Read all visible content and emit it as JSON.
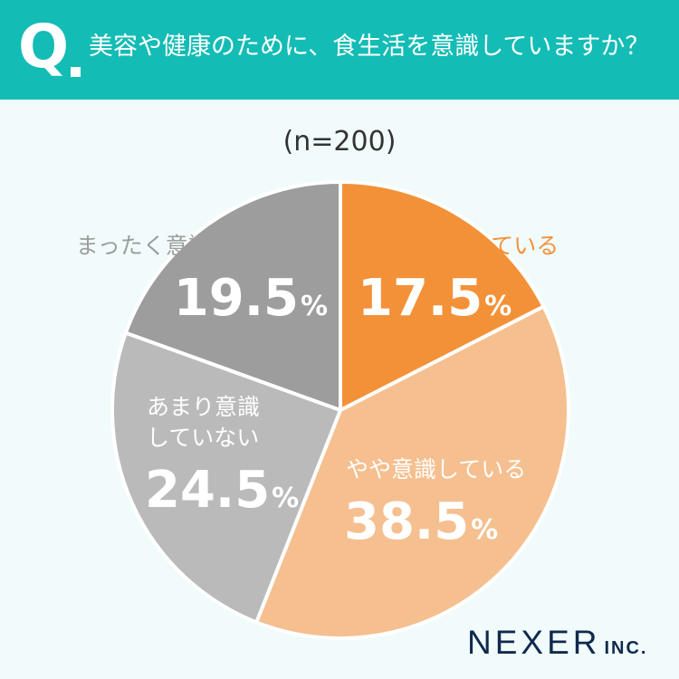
{
  "header": {
    "q_mark": "Q",
    "question": "美容や健康のために、食生活を意識していますか？",
    "bg_color": "#13bcb5"
  },
  "sample": "(n=200)",
  "chart_data": {
    "type": "pie",
    "start": "12 o'clock",
    "direction": "clockwise",
    "slices": [
      {
        "label": "とても意識している",
        "value": 17.5,
        "display": "17.5",
        "color": "#f39138",
        "label_color": "#f39138"
      },
      {
        "label": "やや意識している",
        "value": 38.5,
        "display": "38.5",
        "color": "#f5bf8f",
        "label_color": "#ffffff"
      },
      {
        "label": "あまり意識\nしていない",
        "value": 24.5,
        "display": "24.5",
        "color": "#bababa",
        "label_color": "#ffffff"
      },
      {
        "label": "まったく意識していない",
        "value": 19.5,
        "display": "19.5",
        "color": "#9d9d9d",
        "label_color": "#9d9d9d"
      }
    ],
    "unit": "%"
  },
  "logo": {
    "main": "NEXER",
    "sub": "INC."
  }
}
